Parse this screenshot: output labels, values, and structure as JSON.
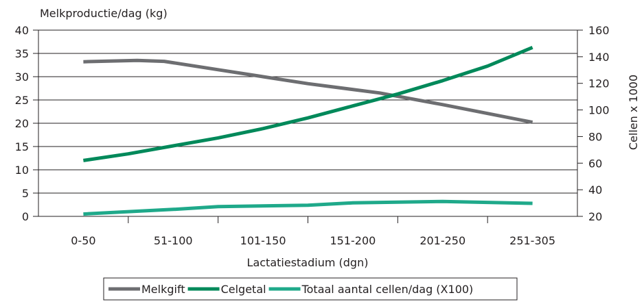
{
  "chart_data": {
    "type": "line",
    "title": "",
    "left_axis_title": "Melkproductie/dag (kg)",
    "right_axis_title": "Cellen x 1000",
    "xlabel": "Lactatiestadium (dgn)",
    "categories": [
      "0-50",
      "51-100",
      "101-150",
      "151-200",
      "201-250",
      "251-305"
    ],
    "y_left": {
      "min": 0,
      "max": 40,
      "step": 5,
      "ticks": [
        "0",
        "5",
        "10",
        "15",
        "20",
        "25",
        "30",
        "35",
        "40"
      ]
    },
    "y_right": {
      "min": 20,
      "max": 160,
      "step": 20,
      "ticks": [
        "20",
        "40",
        "60",
        "80",
        "100",
        "120",
        "140",
        "160"
      ]
    },
    "grid": "horizontal",
    "legend_position": "bottom",
    "series": [
      {
        "name": "Melkgift",
        "axis": "left",
        "color": "#6d6e71",
        "points": [
          [
            0,
            33.2
          ],
          [
            0.6,
            33.5
          ],
          [
            0.9,
            33.3
          ],
          [
            1.5,
            31.5
          ],
          [
            2.5,
            28.5
          ],
          [
            3.3,
            26.5
          ],
          [
            4.0,
            24.0
          ],
          [
            5.0,
            20.2
          ]
        ]
      },
      {
        "name": "Celgetal",
        "axis": "right",
        "color": "#00895a",
        "points": [
          [
            0,
            62
          ],
          [
            0.5,
            67
          ],
          [
            1.0,
            73
          ],
          [
            1.5,
            79
          ],
          [
            2.0,
            86
          ],
          [
            2.5,
            94
          ],
          [
            3.0,
            103
          ],
          [
            3.5,
            112
          ],
          [
            4.0,
            122
          ],
          [
            4.5,
            133
          ],
          [
            5.0,
            147
          ]
        ]
      },
      {
        "name": "Totaal aantal cellen/dag (X100)",
        "axis": "left",
        "color": "#1fa98a",
        "points": [
          [
            0,
            0.5
          ],
          [
            1.0,
            1.5
          ],
          [
            1.5,
            2.1
          ],
          [
            2.5,
            2.4
          ],
          [
            3.0,
            2.9
          ],
          [
            4.0,
            3.2
          ],
          [
            5.0,
            2.8
          ]
        ]
      }
    ]
  }
}
